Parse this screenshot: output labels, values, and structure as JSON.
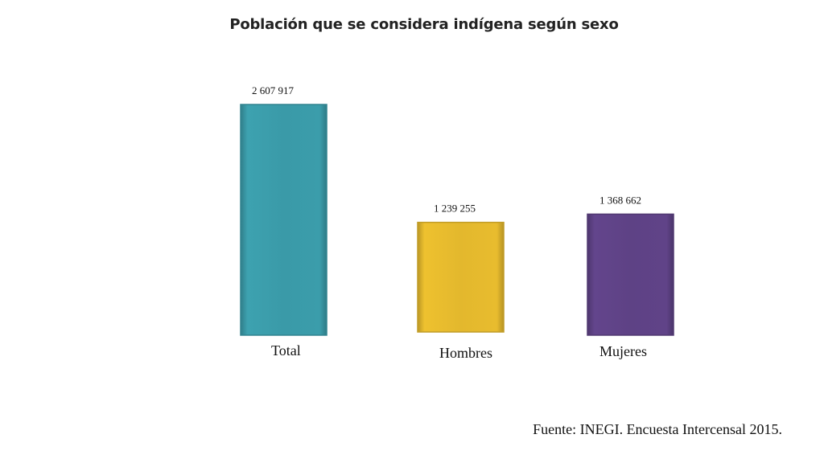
{
  "chart_data": {
    "type": "bar",
    "title": "Población que se considera indígena según sexo",
    "categories": [
      "Total",
      "Hombres",
      "Mujeres"
    ],
    "values": [
      2607917,
      1239255,
      1368662
    ],
    "value_labels": [
      "2 607 917",
      "1 239 255",
      "1 368 662"
    ],
    "colors": [
      "#3a9aa8",
      "#e3b82d",
      "#5e4285"
    ],
    "xlabel": "",
    "ylabel": "",
    "ylim": [
      0,
      2607917
    ],
    "grid": false,
    "legend": "none",
    "source": "Fuente: INEGI. Encuesta Intercensal 2015."
  }
}
